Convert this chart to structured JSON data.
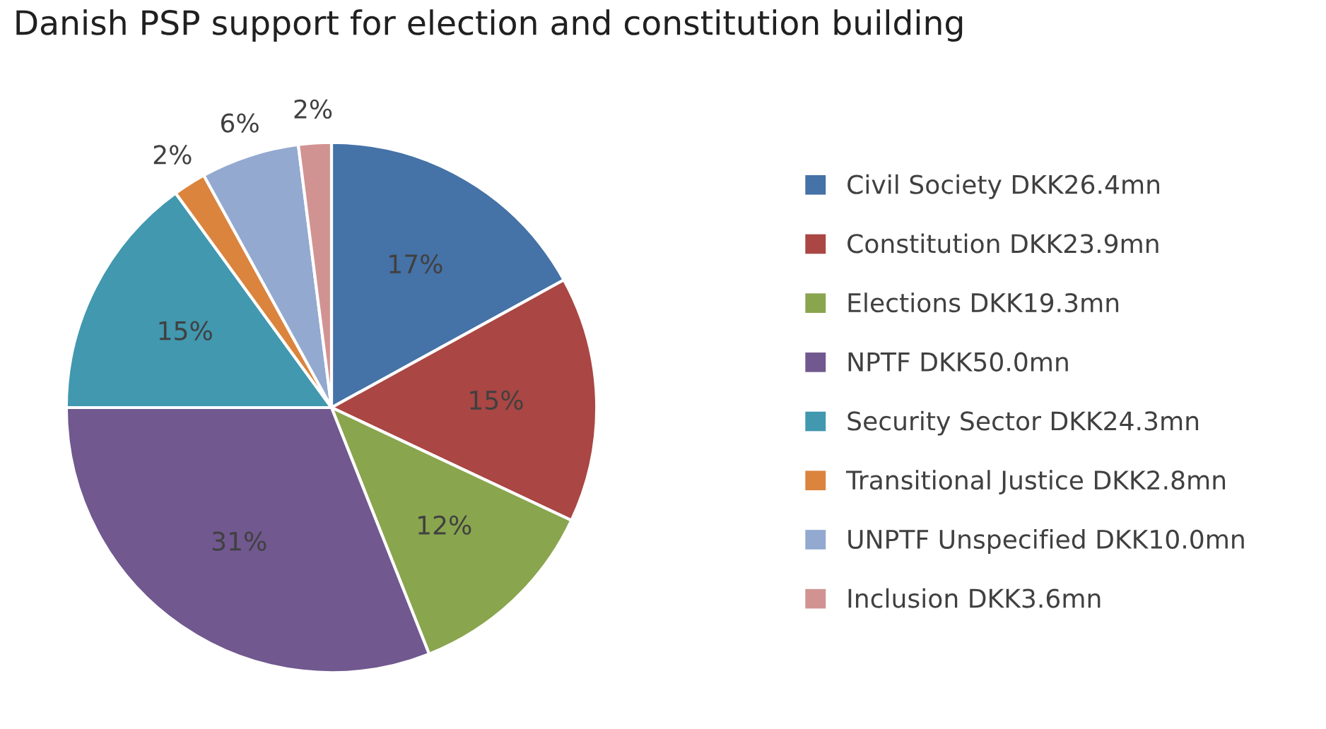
{
  "chart_data": {
    "type": "pie",
    "title": "Danish PSP support for election and constitution building",
    "categories": [
      "Civil Society DKK26.4mn",
      "Constitution DKK23.9mn",
      "Elections DKK19.3mn",
      "NPTF DKK50.0mn",
      "Security Sector DKK24.3mn",
      "Transitional Justice DKK2.8mn",
      "UNPTF Unspecified DKK10.0mn",
      "Inclusion DKK3.6mn"
    ],
    "values": [
      17,
      15,
      12,
      31,
      15,
      2,
      6,
      2
    ],
    "colors": [
      "#4572a7",
      "#aa4643",
      "#89a54e",
      "#71588f",
      "#4198af",
      "#db843d",
      "#93a9cf",
      "#d19392"
    ],
    "value_labels": [
      "17%",
      "15%",
      "12%",
      "31%",
      "15%",
      "2%",
      "6%",
      "2%"
    ],
    "legend": "right"
  }
}
